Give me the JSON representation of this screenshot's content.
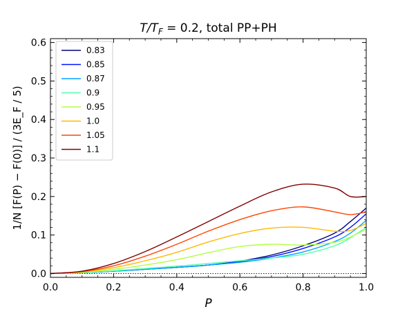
{
  "chart_data": {
    "type": "line",
    "title_prefix": "T/T",
    "title_sub": "F",
    "title_suffix": " = 0.2, total PP+PH",
    "xlabel": "P",
    "ylabel": "1/N [F(P) − F(0)] / (3E_F / 5)",
    "xlim": [
      0.0,
      1.0
    ],
    "ylim": [
      -0.01,
      0.61
    ],
    "xticks": [
      "0.0",
      "0.2",
      "0.4",
      "0.6",
      "0.8",
      "1.0"
    ],
    "yticks": [
      "0.0",
      "0.1",
      "0.2",
      "0.3",
      "0.4",
      "0.5",
      "0.6"
    ],
    "grid": false,
    "legend_position": "upper-left",
    "reference_line": {
      "y": 0.0,
      "style": "dotted"
    },
    "series": [
      {
        "name": "0.83",
        "color": "#00007f",
        "x": [
          0.0,
          0.1,
          0.2,
          0.3,
          0.4,
          0.5,
          0.6,
          0.7,
          0.8,
          0.9,
          0.95,
          1.0
        ],
        "y": [
          0.0,
          0.002,
          0.006,
          0.011,
          0.016,
          0.022,
          0.032,
          0.048,
          0.072,
          0.105,
          0.135,
          0.17
        ]
      },
      {
        "name": "0.85",
        "color": "#0010ff",
        "x": [
          0.0,
          0.1,
          0.2,
          0.3,
          0.4,
          0.5,
          0.6,
          0.7,
          0.8,
          0.9,
          0.95,
          1.0
        ],
        "y": [
          0.0,
          0.002,
          0.006,
          0.011,
          0.016,
          0.022,
          0.031,
          0.044,
          0.065,
          0.095,
          0.12,
          0.155
        ]
      },
      {
        "name": "0.87",
        "color": "#00a4ff",
        "x": [
          0.0,
          0.1,
          0.2,
          0.3,
          0.4,
          0.5,
          0.6,
          0.7,
          0.8,
          0.9,
          0.95,
          1.0
        ],
        "y": [
          0.0,
          0.002,
          0.006,
          0.011,
          0.016,
          0.022,
          0.029,
          0.04,
          0.056,
          0.083,
          0.105,
          0.138
        ]
      },
      {
        "name": "0.9",
        "color": "#4dffaa",
        "x": [
          0.0,
          0.1,
          0.2,
          0.3,
          0.4,
          0.5,
          0.6,
          0.7,
          0.8,
          0.9,
          0.95,
          1.0
        ],
        "y": [
          0.0,
          0.002,
          0.007,
          0.013,
          0.019,
          0.026,
          0.033,
          0.04,
          0.05,
          0.072,
          0.093,
          0.12
        ]
      },
      {
        "name": "0.95",
        "color": "#b2ff43",
        "x": [
          0.0,
          0.1,
          0.2,
          0.3,
          0.4,
          0.5,
          0.6,
          0.7,
          0.8,
          0.9,
          0.95,
          1.0
        ],
        "y": [
          0.0,
          0.003,
          0.011,
          0.022,
          0.036,
          0.054,
          0.07,
          0.076,
          0.074,
          0.081,
          0.095,
          0.115
        ]
      },
      {
        "name": "1.0",
        "color": "#ffb900",
        "x": [
          0.0,
          0.1,
          0.2,
          0.3,
          0.4,
          0.5,
          0.6,
          0.7,
          0.8,
          0.9,
          0.95,
          1.0
        ],
        "y": [
          0.0,
          0.004,
          0.015,
          0.033,
          0.055,
          0.082,
          0.104,
          0.118,
          0.12,
          0.11,
          0.112,
          0.13
        ]
      },
      {
        "name": "1.05",
        "color": "#ff4500",
        "x": [
          0.0,
          0.1,
          0.2,
          0.3,
          0.4,
          0.5,
          0.6,
          0.7,
          0.8,
          0.9,
          0.95,
          1.0
        ],
        "y": [
          0.0,
          0.005,
          0.02,
          0.045,
          0.076,
          0.11,
          0.14,
          0.163,
          0.173,
          0.16,
          0.153,
          0.16
        ]
      },
      {
        "name": "1.1",
        "color": "#7f0000",
        "x": [
          0.0,
          0.1,
          0.2,
          0.3,
          0.4,
          0.5,
          0.6,
          0.7,
          0.8,
          0.9,
          0.95,
          1.0
        ],
        "y": [
          0.0,
          0.006,
          0.026,
          0.057,
          0.095,
          0.135,
          0.175,
          0.212,
          0.232,
          0.222,
          0.2,
          0.2
        ]
      }
    ]
  }
}
